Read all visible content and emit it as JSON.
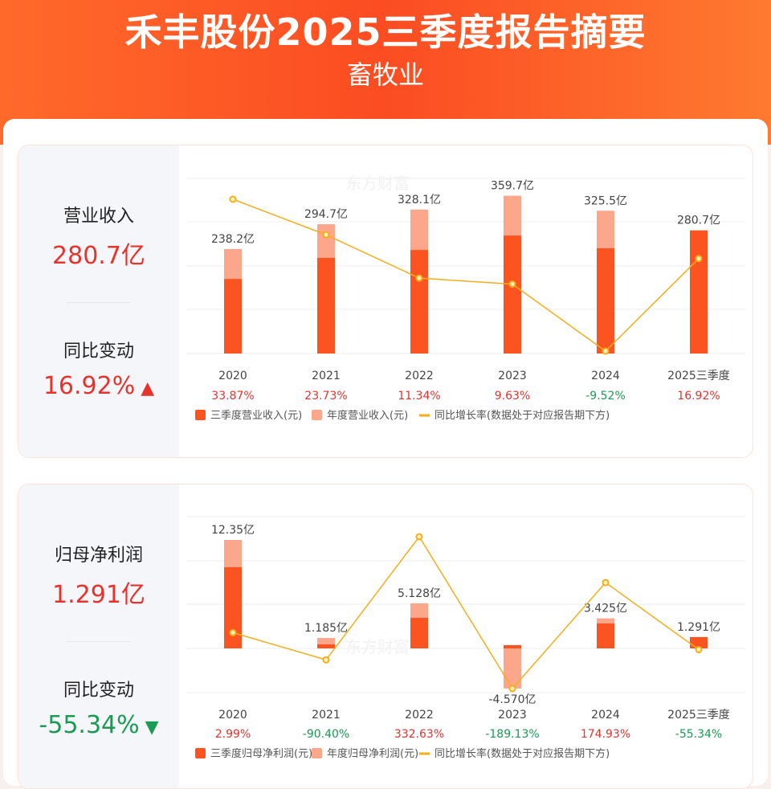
{
  "header": {
    "title": "禾丰股份2025三季度报告摘要",
    "subtitle": "畜牧业"
  },
  "colors": {
    "q3_bar": "#fb5420",
    "annual_bar": "#fca68c",
    "line": "#f5ad1b",
    "up": "#e8322c",
    "down": "#1a9a52"
  },
  "revenue": {
    "label": "营业收入",
    "value": "280.7亿",
    "change_label": "同比变动",
    "change": "16.92%",
    "direction": "up"
  },
  "profit": {
    "label": "归母净利润",
    "value": "1.291亿",
    "change_label": "同比变动",
    "change": "-55.34%",
    "direction": "down"
  },
  "chart_data": [
    {
      "type": "bar",
      "categories": [
        "2020",
        "2021",
        "2022",
        "2023",
        "2024",
        "2025三季度"
      ],
      "series": [
        {
          "name": "三季度营业收入(元)",
          "values": [
            170,
            218,
            236,
            269,
            240,
            280.7
          ]
        },
        {
          "name": "年度营业收入(元)",
          "values": [
            238.2,
            294.7,
            328.1,
            359.7,
            325.5,
            null
          ]
        },
        {
          "name": "同比增长率(数据处于对应报告期下方)",
          "type": "line",
          "values": [
            33.87,
            23.73,
            11.34,
            9.63,
            -9.52,
            16.92
          ]
        }
      ],
      "bar_labels": [
        "238.2亿",
        "294.7亿",
        "328.1亿",
        "359.7亿",
        "325.5亿",
        "280.7亿"
      ],
      "rate_labels": [
        "33.87%",
        "23.73%",
        "11.34%",
        "9.63%",
        "-9.52%",
        "16.92%"
      ],
      "legend": [
        "三季度营业收入(元)",
        "年度营业收入(元)",
        "同比增长率(数据处于对应报告期下方)"
      ],
      "legend_position": "bottom",
      "grid": true
    },
    {
      "type": "bar",
      "categories": [
        "2020",
        "2021",
        "2022",
        "2023",
        "2024",
        "2025三季度"
      ],
      "series": [
        {
          "name": "三季度归母净利润(元)",
          "values": [
            9.24,
            0.46,
            3.48,
            0.37,
            2.84,
            1.291
          ]
        },
        {
          "name": "年度归母净利润(元)",
          "values": [
            12.35,
            1.185,
            5.128,
            -4.57,
            3.425,
            null
          ]
        },
        {
          "name": "同比增长率(数据处于对应报告期下方)",
          "type": "line",
          "values": [
            2.99,
            -90.4,
            332.63,
            -189.13,
            174.93,
            -55.34
          ]
        }
      ],
      "bar_labels": [
        "12.35亿",
        "1.185亿",
        "5.128亿",
        "-4.570亿",
        "3.425亿",
        "1.291亿"
      ],
      "rate_labels": [
        "2.99%",
        "-90.40%",
        "332.63%",
        "-189.13%",
        "174.93%",
        "-55.34%"
      ],
      "legend": [
        "三季度归母净利润(元)",
        "年度归母净利润(元)",
        "同比增长率(数据处于对应报告期下方)"
      ],
      "legend_position": "bottom",
      "grid": true
    }
  ]
}
